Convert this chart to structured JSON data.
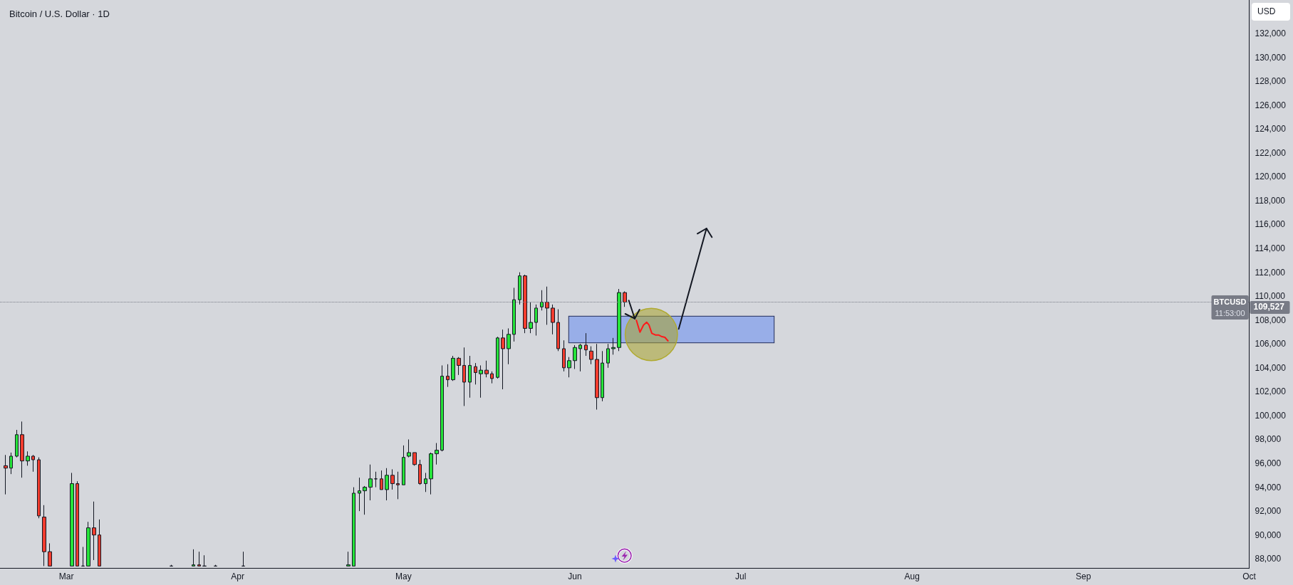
{
  "chart_data": {
    "type": "candlestick",
    "title": "Bitcoin / U.S. Dollar · 1D",
    "ylabel": "USD",
    "x": [
      "--02-18",
      "--02-19",
      "--02-20",
      "--02-21",
      "--02-22",
      "--02-23",
      "--02-24",
      "--02-25",
      "--02-26",
      "--03-02",
      "--03-03",
      "--03-04",
      "--03-05",
      "--03-06",
      "--03-07",
      "--03-20",
      "--03-24",
      "--03-25",
      "--03-26",
      "--03-28",
      "--04-02",
      "--04-21",
      "--04-22",
      "--04-23",
      "--04-24",
      "--04-25",
      "--04-26",
      "--04-27",
      "--04-28",
      "--04-29",
      "--04-30",
      "--05-01",
      "--05-02",
      "--05-03",
      "--05-04",
      "--05-05",
      "--05-06",
      "--05-07",
      "--05-08",
      "--05-09",
      "--05-10",
      "--05-11",
      "--05-12",
      "--05-13",
      "--05-14",
      "--05-15",
      "--05-16",
      "--05-17",
      "--05-18",
      "--05-19",
      "--05-20",
      "--05-21",
      "--05-22",
      "--05-23",
      "--05-24",
      "--05-25",
      "--05-26",
      "--05-27",
      "--05-28",
      "--05-29",
      "--05-30",
      "--05-31",
      "--06-01",
      "--06-02",
      "--06-03",
      "--06-04",
      "--06-05",
      "--06-06",
      "--06-07",
      "--06-08",
      "--06-09",
      "--06-10"
    ],
    "ohlc": [
      [
        95800,
        96700,
        93400,
        95600
      ],
      [
        95600,
        96900,
        95100,
        96600
      ],
      [
        96600,
        98800,
        96500,
        98400
      ],
      [
        98400,
        99500,
        94800,
        96200
      ],
      [
        96200,
        97000,
        95800,
        96600
      ],
      [
        96600,
        96700,
        95300,
        96300
      ],
      [
        96300,
        96500,
        91400,
        91600
      ],
      [
        91500,
        92500,
        87400,
        88600
      ],
      [
        88600,
        89300,
        87400,
        87400
      ],
      [
        87400,
        95200,
        87400,
        94300
      ],
      [
        94300,
        94500,
        87400,
        87400
      ],
      [
        87400,
        89000,
        87400,
        87400
      ],
      [
        87400,
        91100,
        87400,
        90600
      ],
      [
        90600,
        92800,
        87900,
        90000
      ],
      [
        90000,
        91300,
        87400,
        87400
      ],
      [
        87400,
        87500,
        87400,
        87400
      ],
      [
        87400,
        88800,
        87400,
        87500
      ],
      [
        87500,
        88600,
        87400,
        87400
      ],
      [
        87400,
        88300,
        87400,
        87400
      ],
      [
        87400,
        87500,
        87400,
        87400
      ],
      [
        87400,
        88600,
        87400,
        87400
      ],
      [
        87400,
        88600,
        87400,
        87500
      ],
      [
        87400,
        94000,
        87400,
        93500
      ],
      [
        93500,
        94800,
        92000,
        93700
      ],
      [
        93700,
        94100,
        91700,
        94000
      ],
      [
        94000,
        95900,
        92900,
        94700
      ],
      [
        94700,
        95300,
        94000,
        94700
      ],
      [
        94700,
        95400,
        93800,
        93800
      ],
      [
        93800,
        95600,
        92900,
        95000
      ],
      [
        95000,
        95500,
        93800,
        94300
      ],
      [
        94300,
        95300,
        93000,
        94200
      ],
      [
        94200,
        97500,
        94200,
        96500
      ],
      [
        96600,
        98000,
        96500,
        96900
      ],
      [
        96900,
        96900,
        95800,
        95900
      ],
      [
        95900,
        96300,
        94200,
        94300
      ],
      [
        94300,
        95200,
        93600,
        94700
      ],
      [
        94700,
        96900,
        93400,
        96800
      ],
      [
        96800,
        97700,
        95900,
        97100
      ],
      [
        97100,
        104200,
        97000,
        103300
      ],
      [
        103300,
        104300,
        102400,
        103000
      ],
      [
        103000,
        105000,
        102900,
        104800
      ],
      [
        104800,
        104900,
        103400,
        104200
      ],
      [
        104200,
        105700,
        100800,
        102800
      ],
      [
        102800,
        105000,
        101500,
        104200
      ],
      [
        104100,
        104400,
        102600,
        103600
      ],
      [
        103500,
        104200,
        101500,
        103800
      ],
      [
        103800,
        104600,
        103200,
        103500
      ],
      [
        103500,
        103700,
        102700,
        103100
      ],
      [
        103200,
        106600,
        103100,
        106500
      ],
      [
        106500,
        107200,
        102200,
        105600
      ],
      [
        105600,
        107300,
        104300,
        106800
      ],
      [
        106800,
        110700,
        106200,
        109700
      ],
      [
        109700,
        112000,
        109300,
        111700
      ],
      [
        111700,
        111800,
        106900,
        107300
      ],
      [
        107300,
        109500,
        106900,
        107800
      ],
      [
        107800,
        109300,
        106700,
        109000
      ],
      [
        109100,
        110500,
        108800,
        109500
      ],
      [
        109500,
        110800,
        107600,
        109000
      ],
      [
        109000,
        109300,
        106800,
        107800
      ],
      [
        107800,
        108900,
        105400,
        105600
      ],
      [
        105600,
        106300,
        103700,
        104000
      ],
      [
        104000,
        104900,
        103200,
        104600
      ],
      [
        104600,
        105900,
        103900,
        105700
      ],
      [
        105600,
        106000,
        103700,
        105900
      ],
      [
        105900,
        106900,
        105000,
        105500
      ],
      [
        105400,
        105800,
        104300,
        104700
      ],
      [
        104700,
        106000,
        100500,
        101500
      ],
      [
        101500,
        105400,
        101200,
        104400
      ],
      [
        104400,
        106000,
        104000,
        105600
      ],
      [
        105600,
        106500,
        105100,
        105700
      ],
      [
        105700,
        110600,
        105400,
        110300
      ],
      [
        110300,
        110400,
        109100,
        109500
      ]
    ],
    "xlim": [
      "--02-17",
      "--10-01"
    ],
    "xticks": [
      {
        "value": "--03-01",
        "label": "Mar"
      },
      {
        "value": "--04-01",
        "label": "Apr"
      },
      {
        "value": "--05-01",
        "label": "May"
      },
      {
        "value": "--06-01",
        "label": "Jun"
      },
      {
        "value": "--07-01",
        "label": "Jul"
      },
      {
        "value": "--08-01",
        "label": "Aug"
      },
      {
        "value": "--09-01",
        "label": "Sep"
      },
      {
        "value": "--10-01",
        "label": "Oct"
      }
    ],
    "ylim": [
      87200,
      134800
    ],
    "yticks": [
      {
        "value": 88000,
        "label": "88,000"
      },
      {
        "value": 90000,
        "label": "90,000"
      },
      {
        "value": 92000,
        "label": "92,000"
      },
      {
        "value": 94000,
        "label": "94,000"
      },
      {
        "value": 96000,
        "label": "96,000"
      },
      {
        "value": 98000,
        "label": "98,000"
      },
      {
        "value": 100000,
        "label": "100,000"
      },
      {
        "value": 102000,
        "label": "102,000"
      },
      {
        "value": 104000,
        "label": "104,000"
      },
      {
        "value": 106000,
        "label": "106,000"
      },
      {
        "value": 108000,
        "label": "108,000"
      },
      {
        "value": 110000,
        "label": "110,000"
      },
      {
        "value": 112000,
        "label": "112,000"
      },
      {
        "value": 114000,
        "label": "114,000"
      },
      {
        "value": 116000,
        "label": "116,000"
      },
      {
        "value": 118000,
        "label": "118,000"
      },
      {
        "value": 120000,
        "label": "120,000"
      },
      {
        "value": 122000,
        "label": "122,000"
      },
      {
        "value": 124000,
        "label": "124,000"
      },
      {
        "value": 126000,
        "label": "126,000"
      },
      {
        "value": 128000,
        "label": "128,000"
      },
      {
        "value": 130000,
        "label": "130,000"
      },
      {
        "value": 132000,
        "label": "132,000"
      }
    ],
    "ref_lines": [
      {
        "axis": "y",
        "value": 109527,
        "label": "BTCUSD",
        "color": "#787b86",
        "line_style": "dotted"
      }
    ],
    "annotations": [
      "109,527",
      "11:53:00"
    ]
  }
}
